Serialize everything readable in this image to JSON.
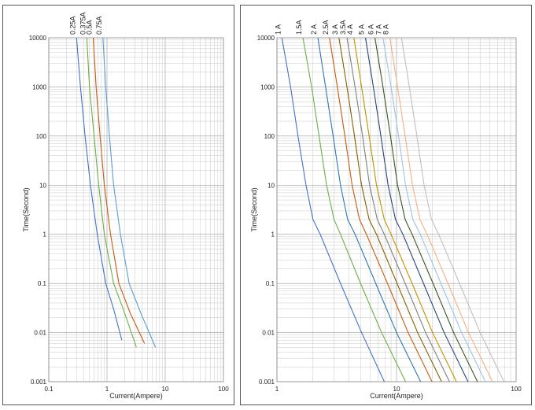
{
  "chart_data": [
    {
      "type": "line",
      "xlabel": "Current(Ampere)",
      "ylabel": "Time(Second)",
      "xscale": "log",
      "yscale": "log",
      "xlim": [
        0.1,
        100
      ],
      "ylim": [
        0.001,
        10000
      ],
      "x_ticks": [
        "0.1",
        "1",
        "10",
        "100"
      ],
      "y_ticks": [
        "10000",
        "1000",
        "100",
        "10",
        "1",
        "0.1",
        "0.01",
        "0.001"
      ],
      "grid": true,
      "series": [
        {
          "name": "0.25A",
          "color": "#4472c4",
          "points": [
            [
              0.3,
              10000
            ],
            [
              0.35,
              1000
            ],
            [
              0.42,
              100
            ],
            [
              0.52,
              10
            ],
            [
              0.68,
              1
            ],
            [
              0.95,
              0.1
            ],
            [
              1.3,
              0.03
            ],
            [
              1.8,
              0.007
            ]
          ]
        },
        {
          "name": "0.375A",
          "color": "#70ad47",
          "points": [
            [
              0.45,
              10000
            ],
            [
              0.5,
              1000
            ],
            [
              0.6,
              100
            ],
            [
              0.72,
              10
            ],
            [
              0.9,
              1
            ],
            [
              1.3,
              0.1
            ],
            [
              1.9,
              0.03
            ],
            [
              3.2,
              0.005
            ]
          ]
        },
        {
          "name": "0.5A",
          "color": "#c55a11",
          "points": [
            [
              0.58,
              10000
            ],
            [
              0.65,
              1000
            ],
            [
              0.76,
              100
            ],
            [
              0.9,
              10
            ],
            [
              1.15,
              1
            ],
            [
              1.6,
              0.1
            ],
            [
              2.5,
              0.025
            ],
            [
              4.4,
              0.006
            ]
          ]
        },
        {
          "name": "0.75A",
          "color": "#5b9bd5",
          "points": [
            [
              0.85,
              10000
            ],
            [
              0.95,
              1000
            ],
            [
              1.1,
              100
            ],
            [
              1.3,
              10
            ],
            [
              1.7,
              1
            ],
            [
              2.4,
              0.1
            ],
            [
              3.8,
              0.025
            ],
            [
              6.8,
              0.005
            ]
          ]
        }
      ]
    },
    {
      "type": "line",
      "xlabel": "Current(Ampere)",
      "ylabel": "Time(Second)",
      "xscale": "log",
      "yscale": "log",
      "xlim": [
        1,
        100
      ],
      "ylim": [
        0.001,
        10000
      ],
      "x_ticks": [
        "1",
        "10",
        "100"
      ],
      "y_ticks": [
        "10000",
        "1000",
        "100",
        "10",
        "1",
        "0.1",
        "0.01",
        "0.001"
      ],
      "grid": true,
      "series": [
        {
          "name": "1 A",
          "color": "#4472c4",
          "points": [
            [
              1.1,
              10000
            ],
            [
              1.3,
              1000
            ],
            [
              1.5,
              100
            ],
            [
              1.75,
              10
            ],
            [
              2.0,
              2
            ],
            [
              2.3,
              1
            ],
            [
              3.4,
              0.1
            ],
            [
              5.1,
              0.01
            ],
            [
              7.9,
              0.001
            ]
          ]
        },
        {
          "name": "1.5A",
          "color": "#70ad47",
          "points": [
            [
              1.65,
              10000
            ],
            [
              1.95,
              1000
            ],
            [
              2.25,
              100
            ],
            [
              2.6,
              10
            ],
            [
              3.0,
              2
            ],
            [
              3.4,
              1
            ],
            [
              5.0,
              0.1
            ],
            [
              7.5,
              0.01
            ],
            [
              11.9,
              0.001
            ]
          ]
        },
        {
          "name": "2 A",
          "color": "#2e75b6",
          "points": [
            [
              2.2,
              10000
            ],
            [
              2.55,
              1000
            ],
            [
              2.95,
              100
            ],
            [
              3.4,
              10
            ],
            [
              3.9,
              2
            ],
            [
              4.5,
              1
            ],
            [
              6.7,
              0.1
            ],
            [
              10.0,
              0.01
            ],
            [
              15.9,
              0.001
            ]
          ]
        },
        {
          "name": "2.5A",
          "color": "#c55a11",
          "points": [
            [
              2.75,
              10000
            ],
            [
              3.2,
              1000
            ],
            [
              3.7,
              100
            ],
            [
              4.25,
              10
            ],
            [
              4.9,
              2
            ],
            [
              5.6,
              1
            ],
            [
              8.4,
              0.1
            ],
            [
              12.5,
              0.01
            ],
            [
              19.8,
              0.001
            ]
          ]
        },
        {
          "name": "3 A",
          "color": "#7f6000",
          "points": [
            [
              3.3,
              10000
            ],
            [
              3.85,
              1000
            ],
            [
              4.45,
              100
            ],
            [
              5.1,
              10
            ],
            [
              5.9,
              2
            ],
            [
              6.8,
              1
            ],
            [
              10.1,
              0.1
            ],
            [
              15.0,
              0.01
            ],
            [
              23.8,
              0.001
            ]
          ]
        },
        {
          "name": "3.5A",
          "color": "#7f7f7f",
          "points": [
            [
              3.85,
              10000
            ],
            [
              4.5,
              1000
            ],
            [
              5.2,
              100
            ],
            [
              5.95,
              10
            ],
            [
              6.9,
              2
            ],
            [
              7.9,
              1
            ],
            [
              11.8,
              0.1
            ],
            [
              17.5,
              0.01
            ],
            [
              27.7,
              0.001
            ]
          ]
        },
        {
          "name": "4 A",
          "color": "#bf9000",
          "points": [
            [
              4.4,
              10000
            ],
            [
              5.1,
              1000
            ],
            [
              5.9,
              100
            ],
            [
              6.8,
              10
            ],
            [
              7.9,
              2
            ],
            [
              9.0,
              1
            ],
            [
              13.5,
              0.1
            ],
            [
              20.0,
              0.01
            ],
            [
              31.7,
              0.001
            ]
          ]
        },
        {
          "name": "5 A",
          "color": "#264478",
          "points": [
            [
              5.5,
              10000
            ],
            [
              6.4,
              1000
            ],
            [
              7.4,
              100
            ],
            [
              8.5,
              10
            ],
            [
              9.8,
              2
            ],
            [
              11.3,
              1
            ],
            [
              16.8,
              0.1
            ],
            [
              25.0,
              0.01
            ],
            [
              39.6,
              0.001
            ]
          ]
        },
        {
          "name": "6 A",
          "color": "#375623",
          "points": [
            [
              6.6,
              10000
            ],
            [
              7.7,
              1000
            ],
            [
              8.9,
              100
            ],
            [
              10.2,
              10
            ],
            [
              11.8,
              2
            ],
            [
              13.5,
              1
            ],
            [
              20.2,
              0.1
            ],
            [
              30.0,
              0.01
            ],
            [
              47.5,
              0.001
            ]
          ]
        },
        {
          "name": "7 A",
          "color": "#9dc3e6",
          "points": [
            [
              7.7,
              10000
            ],
            [
              9.0,
              1000
            ],
            [
              10.4,
              100
            ],
            [
              11.9,
              10
            ],
            [
              13.7,
              2
            ],
            [
              15.8,
              1
            ],
            [
              23.5,
              0.1
            ],
            [
              35.0,
              0.01
            ],
            [
              55.4,
              0.001
            ]
          ]
        },
        {
          "name": "8 A",
          "color": "#f4b183",
          "points": [
            [
              8.8,
              10000
            ],
            [
              10.2,
              1000
            ],
            [
              11.8,
              100
            ],
            [
              13.6,
              10
            ],
            [
              15.7,
              2
            ],
            [
              18.0,
              1
            ],
            [
              26.9,
              0.1
            ],
            [
              40.0,
              0.01
            ],
            [
              63.4,
              0.001
            ]
          ]
        },
        {
          "name": "",
          "color": "#bfbfbf",
          "points": [
            [
              11.0,
              10000
            ],
            [
              12.8,
              1000
            ],
            [
              14.8,
              100
            ],
            [
              17.0,
              10
            ],
            [
              19.6,
              2
            ],
            [
              22.5,
              1
            ],
            [
              33.6,
              0.1
            ],
            [
              50.0,
              0.01
            ],
            [
              79.2,
              0.001
            ]
          ]
        }
      ]
    }
  ]
}
